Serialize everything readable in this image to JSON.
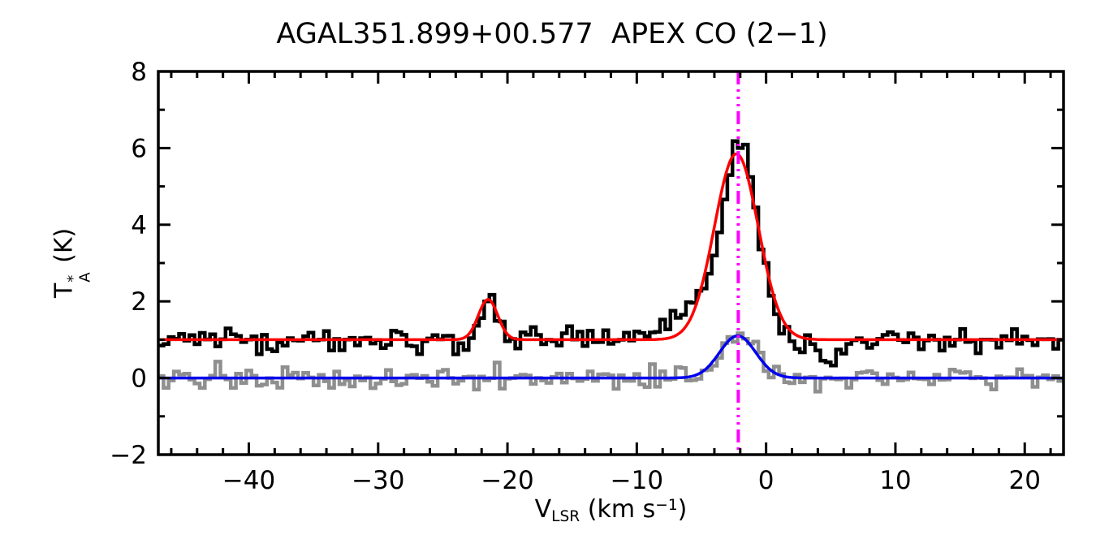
{
  "chart_data": {
    "type": "line",
    "title": "AGAL351.899+00.577  APEX CO (2−1)",
    "xlabel_parts": [
      {
        "t": "V"
      },
      {
        "t": "LSR",
        "s": "sub"
      },
      {
        "t": " (km s"
      },
      {
        "t": "−1",
        "s": "sup"
      },
      {
        "t": ")"
      }
    ],
    "ylabel": {
      "base": "T",
      "sup": "*",
      "sub": "A",
      "suffix": " (K)"
    },
    "x_range": [
      -47,
      23
    ],
    "y_range": [
      -2,
      8
    ],
    "x_ticks": [
      {
        "v": -40,
        "label": "−40"
      },
      {
        "v": -30,
        "label": "−30"
      },
      {
        "v": -20,
        "label": "−20"
      },
      {
        "v": -10,
        "label": "−10"
      },
      {
        "v": 0,
        "label": "0"
      },
      {
        "v": 10,
        "label": "10"
      },
      {
        "v": 20,
        "label": "20"
      }
    ],
    "y_ticks": [
      {
        "v": -2,
        "label": "−2"
      },
      {
        "v": 0,
        "label": "0"
      },
      {
        "v": 2,
        "label": "2"
      },
      {
        "v": 4,
        "label": "4"
      },
      {
        "v": 6,
        "label": "6"
      },
      {
        "v": 8,
        "label": "8"
      }
    ],
    "x_minor_step": 2,
    "y_minor_step": 1,
    "grid": false,
    "legend": false,
    "noise_seed": 9176,
    "series": [
      {
        "name": "observed-spectrum",
        "kind": "histogram",
        "z": 3,
        "color": "#000000",
        "width": 4.5,
        "baseline": 1.0,
        "noise_sigma": 0.16,
        "channel_width": 0.4,
        "components": [
          {
            "amp": 5.0,
            "center": -2.0,
            "sigma": 1.35
          },
          {
            "amp": 1.05,
            "center": -21.5,
            "sigma": 0.7
          },
          {
            "amp": 0.9,
            "center": -5.8,
            "sigma": 1.8
          },
          {
            "amp": -0.65,
            "center": 4.8,
            "sigma": 0.9
          }
        ]
      },
      {
        "name": "isotopologue-spectrum",
        "kind": "histogram",
        "z": 1,
        "color": "#8f8f8f",
        "width": 4.5,
        "baseline": 0.0,
        "noise_sigma": 0.15,
        "channel_width": 0.4,
        "components": [
          {
            "amp": 1.15,
            "center": -2.0,
            "sigma": 1.25
          }
        ]
      },
      {
        "name": "gaussian-fit-main",
        "kind": "curve",
        "z": 4,
        "color": "#ff0000",
        "width": 3.5,
        "baseline": 1.0,
        "components": [
          {
            "amp": 4.85,
            "center": -2.3,
            "sigma": 1.7
          },
          {
            "amp": 1.05,
            "center": -21.5,
            "sigma": 0.75
          }
        ]
      },
      {
        "name": "gaussian-fit-secondary",
        "kind": "curve",
        "z": 2,
        "color": "#0000ee",
        "width": 3.5,
        "baseline": 0.0,
        "components": [
          {
            "amp": 1.1,
            "center": -2.2,
            "sigma": 1.4
          }
        ]
      }
    ],
    "vline": {
      "x": -2.15,
      "color": "#ff00ff",
      "width": 4,
      "dash": "16 6 3 6 3 6 3 6"
    }
  }
}
